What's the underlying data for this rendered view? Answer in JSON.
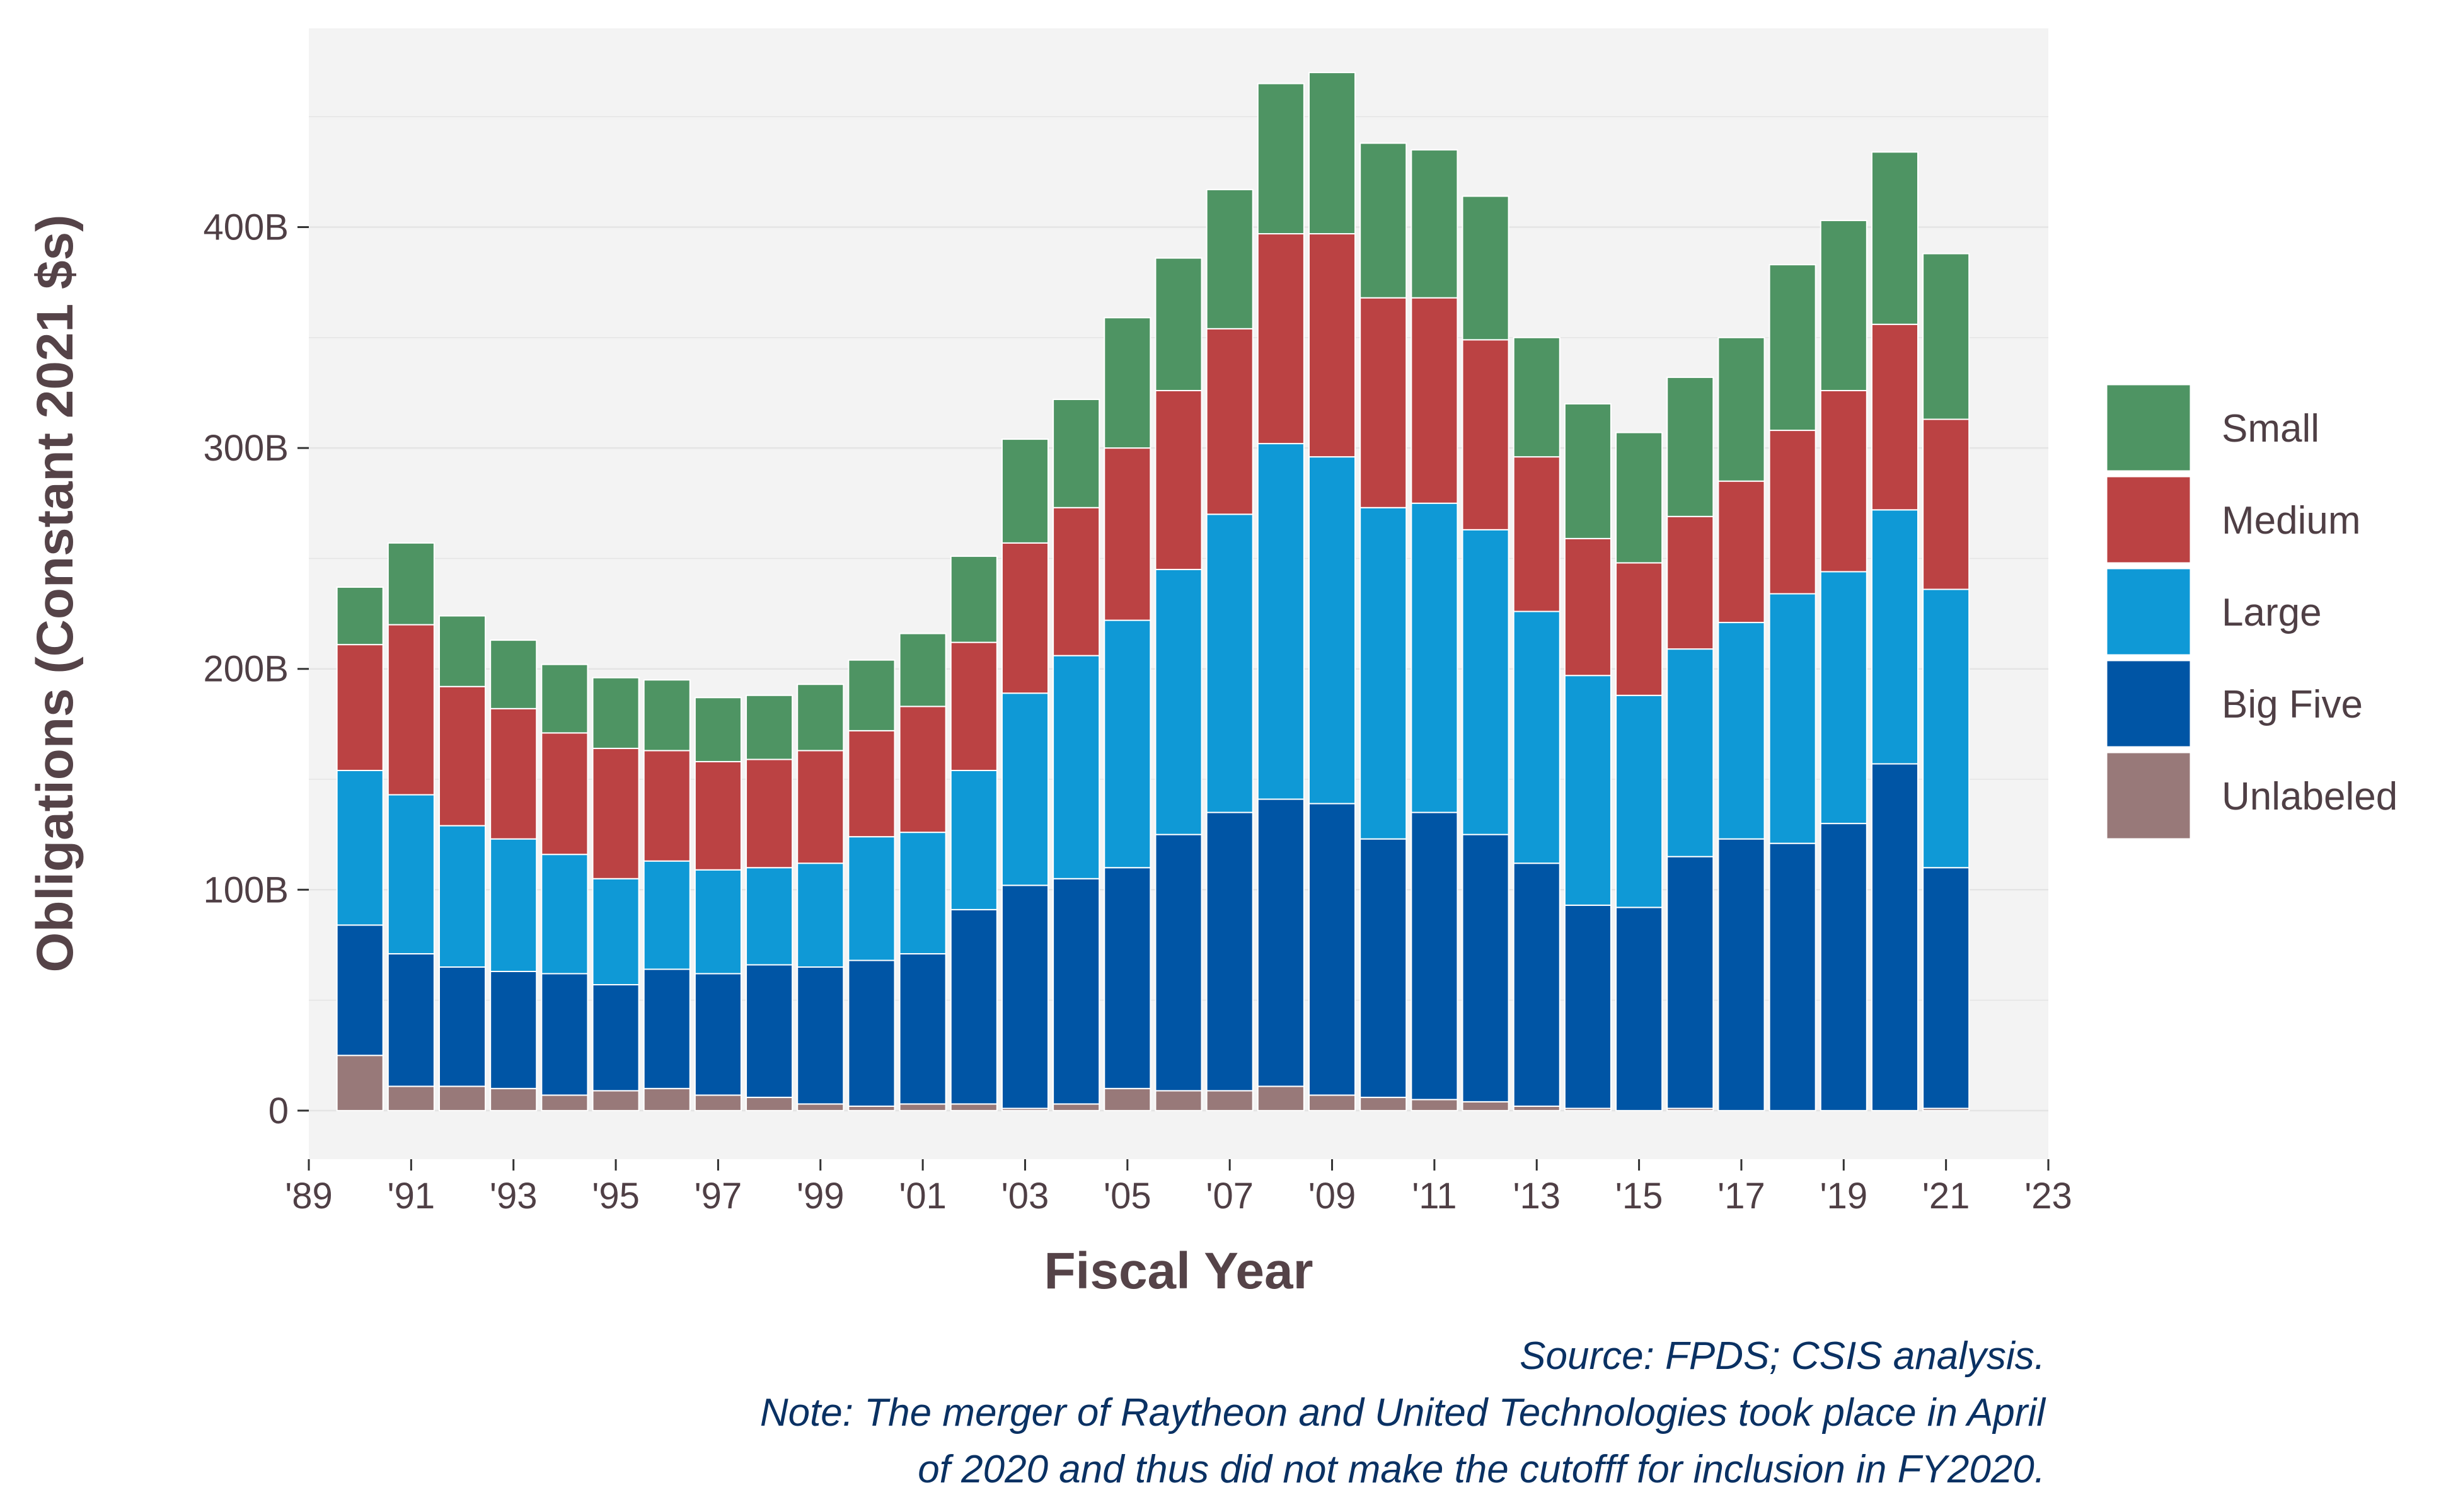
{
  "chart_data": {
    "type": "bar",
    "stacked": true,
    "title": "",
    "xlabel": "Fiscal Year",
    "ylabel": "Obligations (Constant 2021 $s)",
    "x": [
      1990,
      1991,
      1992,
      1993,
      1994,
      1995,
      1996,
      1997,
      1998,
      1999,
      2000,
      2001,
      2002,
      2003,
      2004,
      2005,
      2006,
      2007,
      2008,
      2009,
      2010,
      2011,
      2012,
      2013,
      2014,
      2015,
      2016,
      2017,
      2018,
      2019,
      2020,
      2021
    ],
    "xlim": [
      1989,
      2023
    ],
    "x_ticks": [
      "'89",
      "'91",
      "'93",
      "'95",
      "'97",
      "'99",
      "'01",
      "'03",
      "'05",
      "'07",
      "'09",
      "'11",
      "'13",
      "'15",
      "'17",
      "'19",
      "'21",
      "'23"
    ],
    "ylim": [
      -22,
      490
    ],
    "y_ticks": [
      "0",
      "100B",
      "200B",
      "300B",
      "400B"
    ],
    "y_tick_values": [
      0,
      100,
      200,
      300,
      400
    ],
    "units": "billions",
    "grid": true,
    "legend_position": "right",
    "series": [
      {
        "name": "Unlabeled",
        "color": "#987979",
        "values": [
          25,
          11,
          11,
          10,
          7,
          9,
          10,
          7,
          6,
          3,
          2,
          3,
          3,
          1,
          3,
          10,
          9,
          9,
          11,
          7,
          6,
          5,
          4,
          2,
          1,
          0,
          1,
          0,
          0,
          0,
          0,
          1
        ]
      },
      {
        "name": "Big Five",
        "color": "#0055a5",
        "values": [
          59,
          60,
          54,
          53,
          55,
          48,
          54,
          55,
          60,
          62,
          66,
          68,
          88,
          101,
          102,
          100,
          116,
          126,
          130,
          132,
          117,
          130,
          121,
          110,
          92,
          92,
          114,
          123,
          121,
          130,
          157,
          109
        ]
      },
      {
        "name": "Large",
        "color": "#0f99d6",
        "values": [
          70,
          72,
          64,
          60,
          54,
          48,
          49,
          47,
          44,
          47,
          56,
          55,
          63,
          87,
          101,
          112,
          120,
          135,
          161,
          157,
          150,
          140,
          138,
          114,
          104,
          96,
          94,
          98,
          113,
          114,
          115,
          126
        ]
      },
      {
        "name": "Medium",
        "color": "#bb4243",
        "values": [
          57,
          77,
          63,
          59,
          55,
          59,
          50,
          49,
          49,
          51,
          48,
          57,
          58,
          68,
          67,
          78,
          81,
          84,
          95,
          101,
          95,
          93,
          86,
          70,
          62,
          60,
          60,
          64,
          74,
          82,
          84,
          77
        ]
      },
      {
        "name": "Small",
        "color": "#4e9463",
        "values": [
          26,
          37,
          32,
          31,
          31,
          32,
          32,
          29,
          29,
          30,
          32,
          33,
          39,
          47,
          49,
          59,
          60,
          63,
          68,
          73,
          70,
          67,
          65,
          54,
          61,
          59,
          63,
          65,
          75,
          77,
          78,
          75
        ]
      }
    ],
    "legend_order": [
      "Small",
      "Medium",
      "Large",
      "Big Five",
      "Unlabeled"
    ],
    "panel_background": "#f3f3f3",
    "gridline_color": "#e4e4e4"
  },
  "notes": {
    "source": "Source: FPDS; CSIS analysis.",
    "line1": "Note: The merger of Raytheon and United Technologies took place in April",
    "line2": "of 2020 and thus did not make the cutofff for inclusion in FY2020."
  }
}
